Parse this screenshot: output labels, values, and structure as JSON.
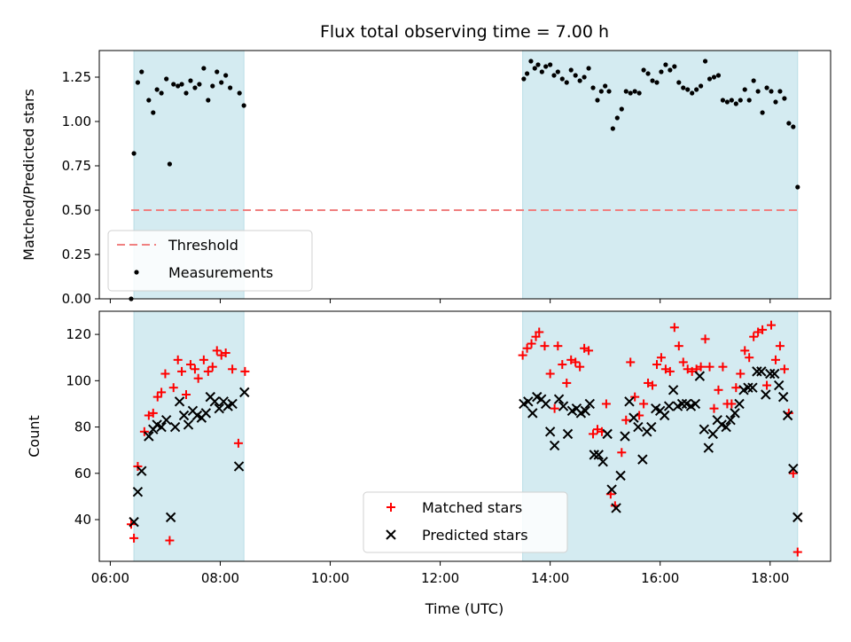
{
  "chart_data": {
    "type": "scatter",
    "title": "Flux total observing time = 7.00 h",
    "xlabel": "Time (UTC)",
    "x_ticks": [
      "06:00",
      "08:00",
      "10:00",
      "12:00",
      "14:00",
      "16:00",
      "18:00"
    ],
    "x_tick_hours": [
      6,
      8,
      10,
      12,
      14,
      16,
      18
    ],
    "xlim_hours": [
      5.8,
      19.1
    ],
    "observing_windows_hours": [
      [
        6.43,
        8.43
      ],
      [
        13.5,
        18.5
      ]
    ],
    "window_color": "#d4ebf1",
    "top": {
      "ylabel": "Matched/Predicted stars",
      "ylim": [
        0,
        1.4
      ],
      "y_ticks": [
        0,
        0.25,
        0.5,
        0.75,
        1.0,
        1.25
      ],
      "y_tick_labels": [
        "0.00",
        "0.25",
        "0.50",
        "0.75",
        "1.00",
        "1.25"
      ],
      "threshold": {
        "name": "Threshold",
        "value": 0.5,
        "x_range_hours": [
          6.38,
          18.5
        ],
        "color": "#f08080"
      },
      "measurements": {
        "name": "Measurements",
        "color": "#000000",
        "points": [
          [
            6.38,
            0.0
          ],
          [
            6.43,
            0.82
          ],
          [
            6.5,
            1.22
          ],
          [
            6.57,
            1.28
          ],
          [
            6.7,
            1.12
          ],
          [
            6.78,
            1.05
          ],
          [
            6.85,
            1.18
          ],
          [
            6.93,
            1.16
          ],
          [
            7.02,
            1.24
          ],
          [
            7.08,
            0.76
          ],
          [
            7.15,
            1.21
          ],
          [
            7.23,
            1.2
          ],
          [
            7.3,
            1.21
          ],
          [
            7.38,
            1.16
          ],
          [
            7.46,
            1.23
          ],
          [
            7.54,
            1.19
          ],
          [
            7.62,
            1.21
          ],
          [
            7.7,
            1.3
          ],
          [
            7.78,
            1.12
          ],
          [
            7.86,
            1.2
          ],
          [
            7.94,
            1.28
          ],
          [
            8.02,
            1.22
          ],
          [
            8.1,
            1.26
          ],
          [
            8.18,
            1.19
          ],
          [
            8.35,
            1.16
          ],
          [
            8.43,
            1.09
          ],
          [
            13.52,
            1.24
          ],
          [
            13.58,
            1.27
          ],
          [
            13.65,
            1.34
          ],
          [
            13.72,
            1.3
          ],
          [
            13.78,
            1.32
          ],
          [
            13.85,
            1.28
          ],
          [
            13.92,
            1.31
          ],
          [
            14.0,
            1.32
          ],
          [
            14.07,
            1.26
          ],
          [
            14.14,
            1.28
          ],
          [
            14.22,
            1.24
          ],
          [
            14.3,
            1.22
          ],
          [
            14.38,
            1.29
          ],
          [
            14.46,
            1.26
          ],
          [
            14.54,
            1.23
          ],
          [
            14.62,
            1.25
          ],
          [
            14.7,
            1.3
          ],
          [
            14.78,
            1.19
          ],
          [
            14.86,
            1.12
          ],
          [
            14.93,
            1.17
          ],
          [
            15.0,
            1.2
          ],
          [
            15.07,
            1.17
          ],
          [
            15.14,
            0.96
          ],
          [
            15.22,
            1.02
          ],
          [
            15.3,
            1.07
          ],
          [
            15.38,
            1.17
          ],
          [
            15.46,
            1.16
          ],
          [
            15.54,
            1.17
          ],
          [
            15.62,
            1.16
          ],
          [
            15.7,
            1.29
          ],
          [
            15.78,
            1.27
          ],
          [
            15.86,
            1.23
          ],
          [
            15.94,
            1.22
          ],
          [
            16.02,
            1.28
          ],
          [
            16.1,
            1.32
          ],
          [
            16.18,
            1.29
          ],
          [
            16.26,
            1.31
          ],
          [
            16.34,
            1.22
          ],
          [
            16.42,
            1.19
          ],
          [
            16.5,
            1.18
          ],
          [
            16.58,
            1.16
          ],
          [
            16.66,
            1.18
          ],
          [
            16.74,
            1.2
          ],
          [
            16.82,
            1.34
          ],
          [
            16.9,
            1.24
          ],
          [
            16.98,
            1.25
          ],
          [
            17.06,
            1.26
          ],
          [
            17.14,
            1.12
          ],
          [
            17.22,
            1.11
          ],
          [
            17.3,
            1.12
          ],
          [
            17.38,
            1.1
          ],
          [
            17.46,
            1.12
          ],
          [
            17.54,
            1.18
          ],
          [
            17.62,
            1.12
          ],
          [
            17.7,
            1.23
          ],
          [
            17.78,
            1.17
          ],
          [
            17.86,
            1.05
          ],
          [
            17.94,
            1.19
          ],
          [
            18.02,
            1.17
          ],
          [
            18.1,
            1.11
          ],
          [
            18.18,
            1.17
          ],
          [
            18.26,
            1.13
          ],
          [
            18.34,
            0.99
          ],
          [
            18.42,
            0.97
          ],
          [
            18.5,
            0.63
          ]
        ]
      }
    },
    "bottom": {
      "ylabel": "Count",
      "ylim": [
        22,
        130
      ],
      "y_ticks": [
        40,
        60,
        80,
        100,
        120
      ],
      "y_tick_labels": [
        "40",
        "60",
        "80",
        "100",
        "120"
      ],
      "matched": {
        "name": "Matched stars",
        "color": "#ff0000",
        "points": [
          [
            6.38,
            38
          ],
          [
            6.43,
            32
          ],
          [
            6.5,
            63
          ],
          [
            6.62,
            78
          ],
          [
            6.7,
            85
          ],
          [
            6.78,
            86
          ],
          [
            6.86,
            93
          ],
          [
            6.93,
            95
          ],
          [
            7.0,
            103
          ],
          [
            7.08,
            31
          ],
          [
            7.15,
            97
          ],
          [
            7.23,
            109
          ],
          [
            7.3,
            104
          ],
          [
            7.38,
            94
          ],
          [
            7.46,
            107
          ],
          [
            7.54,
            105
          ],
          [
            7.6,
            101
          ],
          [
            7.7,
            109
          ],
          [
            7.78,
            104
          ],
          [
            7.86,
            106
          ],
          [
            7.94,
            113
          ],
          [
            8.02,
            111
          ],
          [
            8.1,
            112
          ],
          [
            8.22,
            105
          ],
          [
            8.33,
            73
          ],
          [
            8.45,
            104
          ],
          [
            13.5,
            111
          ],
          [
            13.58,
            114
          ],
          [
            13.66,
            116
          ],
          [
            13.74,
            119
          ],
          [
            13.8,
            121
          ],
          [
            13.9,
            115
          ],
          [
            14.0,
            103
          ],
          [
            14.08,
            88
          ],
          [
            14.14,
            115
          ],
          [
            14.22,
            107
          ],
          [
            14.3,
            99
          ],
          [
            14.38,
            109
          ],
          [
            14.46,
            108
          ],
          [
            14.54,
            106
          ],
          [
            14.62,
            114
          ],
          [
            14.7,
            113
          ],
          [
            14.78,
            77
          ],
          [
            14.86,
            79
          ],
          [
            14.94,
            78
          ],
          [
            15.02,
            90
          ],
          [
            15.1,
            51
          ],
          [
            15.18,
            46
          ],
          [
            15.3,
            69
          ],
          [
            15.38,
            83
          ],
          [
            15.46,
            108
          ],
          [
            15.54,
            93
          ],
          [
            15.62,
            85
          ],
          [
            15.7,
            90
          ],
          [
            15.78,
            99
          ],
          [
            15.86,
            98
          ],
          [
            15.94,
            107
          ],
          [
            16.02,
            110
          ],
          [
            16.1,
            105
          ],
          [
            16.18,
            104
          ],
          [
            16.26,
            123
          ],
          [
            16.34,
            115
          ],
          [
            16.42,
            108
          ],
          [
            16.5,
            105
          ],
          [
            16.58,
            104
          ],
          [
            16.66,
            105
          ],
          [
            16.74,
            106
          ],
          [
            16.82,
            118
          ],
          [
            16.9,
            106
          ],
          [
            16.98,
            88
          ],
          [
            17.06,
            96
          ],
          [
            17.14,
            106
          ],
          [
            17.22,
            90
          ],
          [
            17.3,
            90
          ],
          [
            17.38,
            97
          ],
          [
            17.46,
            103
          ],
          [
            17.54,
            113
          ],
          [
            17.62,
            110
          ],
          [
            17.7,
            119
          ],
          [
            17.78,
            121
          ],
          [
            17.86,
            122
          ],
          [
            17.94,
            98
          ],
          [
            18.02,
            124
          ],
          [
            18.1,
            109
          ],
          [
            18.18,
            115
          ],
          [
            18.26,
            105
          ],
          [
            18.34,
            86
          ],
          [
            18.42,
            60
          ],
          [
            18.5,
            26
          ]
        ]
      },
      "predicted": {
        "name": "Predicted stars",
        "color": "#000000",
        "points": [
          [
            6.43,
            39
          ],
          [
            6.5,
            52
          ],
          [
            6.57,
            61
          ],
          [
            6.7,
            76
          ],
          [
            6.78,
            79
          ],
          [
            6.85,
            81
          ],
          [
            6.93,
            80
          ],
          [
            7.02,
            83
          ],
          [
            7.1,
            41
          ],
          [
            7.18,
            80
          ],
          [
            7.26,
            91
          ],
          [
            7.34,
            85
          ],
          [
            7.42,
            81
          ],
          [
            7.5,
            87
          ],
          [
            7.58,
            85
          ],
          [
            7.66,
            84
          ],
          [
            7.74,
            86
          ],
          [
            7.82,
            93
          ],
          [
            7.9,
            91
          ],
          [
            7.98,
            88
          ],
          [
            8.06,
            91
          ],
          [
            8.14,
            89
          ],
          [
            8.22,
            90
          ],
          [
            8.34,
            63
          ],
          [
            8.44,
            95
          ],
          [
            13.52,
            90
          ],
          [
            13.6,
            91
          ],
          [
            13.68,
            86
          ],
          [
            13.76,
            93
          ],
          [
            13.84,
            92
          ],
          [
            13.92,
            90
          ],
          [
            14.0,
            78
          ],
          [
            14.08,
            72
          ],
          [
            14.16,
            92
          ],
          [
            14.24,
            89
          ],
          [
            14.32,
            77
          ],
          [
            14.4,
            87
          ],
          [
            14.48,
            88
          ],
          [
            14.56,
            86
          ],
          [
            14.64,
            87
          ],
          [
            14.72,
            90
          ],
          [
            14.8,
            68
          ],
          [
            14.88,
            68
          ],
          [
            14.96,
            65
          ],
          [
            15.04,
            77
          ],
          [
            15.12,
            53
          ],
          [
            15.2,
            45
          ],
          [
            15.28,
            59
          ],
          [
            15.36,
            76
          ],
          [
            15.44,
            91
          ],
          [
            15.52,
            84
          ],
          [
            15.6,
            80
          ],
          [
            15.68,
            66
          ],
          [
            15.76,
            78
          ],
          [
            15.84,
            80
          ],
          [
            15.92,
            88
          ],
          [
            16.0,
            87
          ],
          [
            16.08,
            85
          ],
          [
            16.16,
            89
          ],
          [
            16.24,
            96
          ],
          [
            16.32,
            89
          ],
          [
            16.4,
            90
          ],
          [
            16.48,
            90
          ],
          [
            16.56,
            89
          ],
          [
            16.64,
            90
          ],
          [
            16.72,
            102
          ],
          [
            16.8,
            79
          ],
          [
            16.88,
            71
          ],
          [
            16.96,
            77
          ],
          [
            17.04,
            83
          ],
          [
            17.12,
            81
          ],
          [
            17.2,
            80
          ],
          [
            17.28,
            83
          ],
          [
            17.36,
            86
          ],
          [
            17.44,
            90
          ],
          [
            17.52,
            96
          ],
          [
            17.6,
            97
          ],
          [
            17.68,
            97
          ],
          [
            17.76,
            104
          ],
          [
            17.84,
            104
          ],
          [
            17.92,
            94
          ],
          [
            18.0,
            103
          ],
          [
            18.08,
            103
          ],
          [
            18.16,
            98
          ],
          [
            18.24,
            93
          ],
          [
            18.32,
            85
          ],
          [
            18.42,
            62
          ],
          [
            18.5,
            41
          ]
        ]
      }
    }
  }
}
